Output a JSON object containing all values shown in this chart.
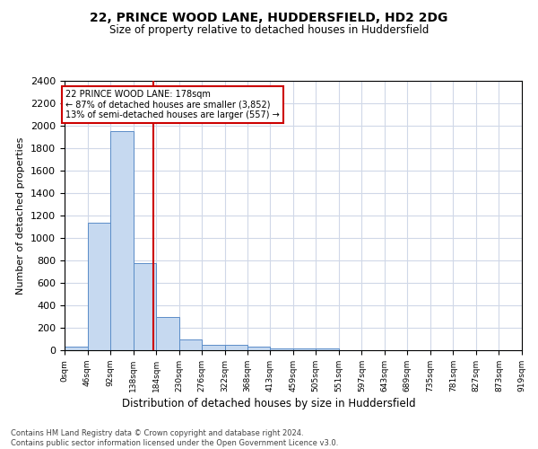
{
  "title": "22, PRINCE WOOD LANE, HUDDERSFIELD, HD2 2DG",
  "subtitle": "Size of property relative to detached houses in Huddersfield",
  "xlabel": "Distribution of detached houses by size in Huddersfield",
  "ylabel_full": "Number of detached properties",
  "bar_color": "#c6d9f0",
  "bar_edge_color": "#5b8dc8",
  "bin_edges": [
    0,
    46,
    92,
    138,
    184,
    230,
    276,
    322,
    368,
    413,
    459,
    505,
    551,
    597,
    643,
    689,
    735,
    781,
    827,
    873,
    919
  ],
  "bar_heights": [
    30,
    1140,
    1950,
    780,
    295,
    100,
    45,
    45,
    30,
    20,
    15,
    20,
    0,
    0,
    0,
    0,
    0,
    0,
    0,
    0
  ],
  "red_line_x": 178,
  "annotation_text": "22 PRINCE WOOD LANE: 178sqm\n← 87% of detached houses are smaller (3,852)\n13% of semi-detached houses are larger (557) →",
  "annotation_box_color": "#ffffff",
  "annotation_box_edge": "#cc0000",
  "ylim": [
    0,
    2400
  ],
  "yticks": [
    0,
    200,
    400,
    600,
    800,
    1000,
    1200,
    1400,
    1600,
    1800,
    2000,
    2200,
    2400
  ],
  "footer_line1": "Contains HM Land Registry data © Crown copyright and database right 2024.",
  "footer_line2": "Contains public sector information licensed under the Open Government Licence v3.0.",
  "background_color": "#ffffff",
  "grid_color": "#d0d8e8"
}
